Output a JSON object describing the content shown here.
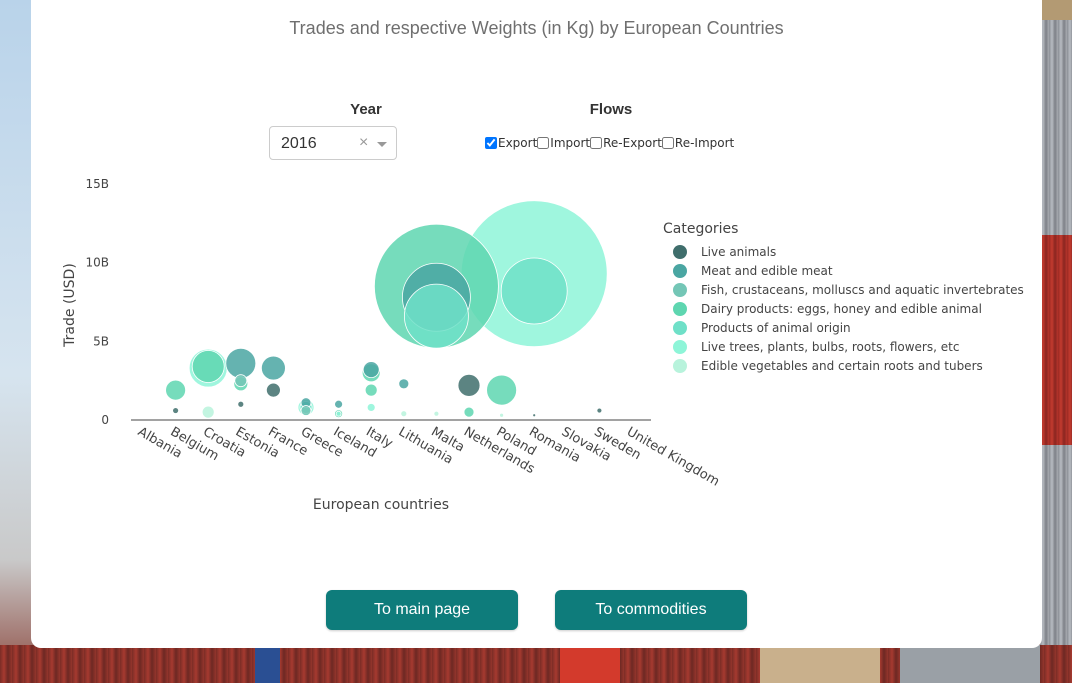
{
  "page": {
    "title": "Trades and respective Weights (in Kg) by European Countries"
  },
  "controls": {
    "year_label": "Year",
    "year_value": "2016",
    "clear_symbol": "×",
    "flows_label": "Flows",
    "flows": [
      {
        "label": "Export",
        "checked": true
      },
      {
        "label": "Import",
        "checked": false
      },
      {
        "label": "Re-Export",
        "checked": false
      },
      {
        "label": "Re-Import",
        "checked": false
      }
    ]
  },
  "buttons": {
    "main": "To main page",
    "commodities": "To commodities"
  },
  "chart_data": {
    "type": "scatter",
    "xlabel": "European countries",
    "ylabel": "Trade (USD)",
    "ylim": [
      0,
      15000000000
    ],
    "y_ticks": [
      {
        "v": 0,
        "label": "0"
      },
      {
        "v": 5000000000,
        "label": "5B"
      },
      {
        "v": 10000000000,
        "label": "10B"
      },
      {
        "v": 15000000000,
        "label": "15B"
      }
    ],
    "categories": [
      "Albania",
      "Belgium",
      "Croatia",
      "Estonia",
      "France",
      "Greece",
      "Iceland",
      "Italy",
      "Lithuania",
      "Malta",
      "Netherlands",
      "Poland",
      "Romania",
      "Slovakia",
      "Sweden",
      "United Kingdom"
    ],
    "legend_title": "Categories",
    "legend_position": "right",
    "series": [
      {
        "name": "Live animals",
        "color": "#3f6e6c",
        "points": [
          {
            "x": "Belgium",
            "y": 600000000,
            "r": 3
          },
          {
            "x": "Estonia",
            "y": 1000000000,
            "r": 3
          },
          {
            "x": "France",
            "y": 1900000000,
            "r": 7
          },
          {
            "x": "Netherlands",
            "y": 2200000000,
            "r": 11
          },
          {
            "x": "Romania",
            "y": 300000000,
            "r": 1.5
          },
          {
            "x": "Sweden",
            "y": 600000000,
            "r": 2.5
          }
        ]
      },
      {
        "name": "Meat and edible meat",
        "color": "#4aa6a2",
        "points": [
          {
            "x": "Estonia",
            "y": 3600000000,
            "r": 15
          },
          {
            "x": "France",
            "y": 3300000000,
            "r": 12
          },
          {
            "x": "Greece",
            "y": 1100000000,
            "r": 5
          },
          {
            "x": "Iceland",
            "y": 1000000000,
            "r": 4
          },
          {
            "x": "Italy",
            "y": 3200000000,
            "r": 8
          },
          {
            "x": "Lithuania",
            "y": 2300000000,
            "r": 5
          },
          {
            "x": "Malta",
            "y": 7800000000,
            "r": 34
          }
        ]
      },
      {
        "name": "Fish, crustaceans, molluscs and aquatic invertebrates",
        "color": "#74c6b6",
        "points": [
          {
            "x": "Estonia",
            "y": 2500000000,
            "r": 6
          },
          {
            "x": "Greece",
            "y": 600000000,
            "r": 5
          }
        ]
      },
      {
        "name": "Dairy products: eggs, honey and edible animal",
        "color": "#5ed6b0",
        "points": [
          {
            "x": "Belgium",
            "y": 1900000000,
            "r": 10
          },
          {
            "x": "Croatia",
            "y": 3400000000,
            "r": 16
          },
          {
            "x": "Estonia",
            "y": 2300000000,
            "r": 7
          },
          {
            "x": "Malta",
            "y": 8500000000,
            "r": 62
          },
          {
            "x": "Iceland",
            "y": 400000000,
            "r": 4
          },
          {
            "x": "Italy",
            "y": 1900000000,
            "r": 6
          },
          {
            "x": "Italy",
            "y": 3000000000,
            "r": 9
          },
          {
            "x": "Netherlands",
            "y": 500000000,
            "r": 5
          },
          {
            "x": "Poland",
            "y": 1900000000,
            "r": 15
          }
        ]
      },
      {
        "name": "Products of animal origin",
        "color": "#6fe0c8",
        "points": [
          {
            "x": "Malta",
            "y": 6600000000,
            "r": 32
          },
          {
            "x": "Greece",
            "y": 800000000,
            "r": 6
          },
          {
            "x": "Romania",
            "y": 8200000000,
            "r": 33
          }
        ]
      },
      {
        "name": "Live trees, plants, bulbs, roots, flowers, etc",
        "color": "#8ef5d8",
        "points": [
          {
            "x": "Croatia",
            "y": 3300000000,
            "r": 19
          },
          {
            "x": "Greece",
            "y": 800000000,
            "r": 8
          },
          {
            "x": "Italy",
            "y": 800000000,
            "r": 4
          },
          {
            "x": "Romania",
            "y": 9300000000,
            "r": 73
          },
          {
            "x": "Iceland",
            "y": 400000000,
            "r": 2.5
          }
        ]
      },
      {
        "name": "Edible vegetables and certain roots and tubers",
        "color": "#b8f3dc",
        "points": [
          {
            "x": "Croatia",
            "y": 500000000,
            "r": 6
          },
          {
            "x": "Lithuania",
            "y": 400000000,
            "r": 3
          },
          {
            "x": "Malta",
            "y": 400000000,
            "r": 2.5
          },
          {
            "x": "Poland",
            "y": 300000000,
            "r": 2
          }
        ]
      }
    ]
  }
}
